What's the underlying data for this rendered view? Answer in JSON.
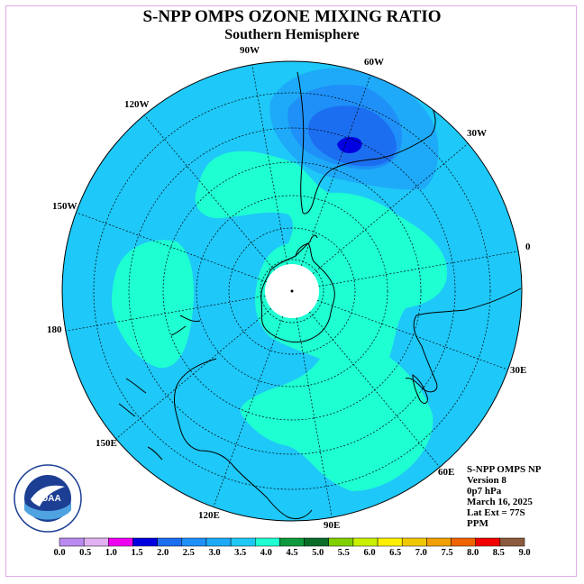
{
  "title": "S-NPP OMPS OZONE MIXING RATIO",
  "subtitle": "Southern Hemisphere",
  "longitude_labels": {
    "lon_90w": "90W",
    "lon_60w": "60W",
    "lon_30w": "30W",
    "lon_0": "0",
    "lon_30e": "30E",
    "lon_60e": "60E",
    "lon_90e": "90E",
    "lon_120e": "120E",
    "lon_150e": "150E",
    "lon_180": "180",
    "lon_150w": "150W",
    "lon_120w": "120W"
  },
  "info": {
    "product": "S-NPP OMPS NP",
    "version": "Version 8",
    "level": "0p7 hPa",
    "date": "March 16, 2025",
    "lat_ext": "Lat Ext = 77S",
    "units": "PPM"
  },
  "logo": {
    "text": "NOAA",
    "ring_text": "NATIONAL OCEANIC AND ATMOSPHERIC ADMINISTRATION · U.S. DEPARTMENT OF COMMERCE"
  },
  "colorbar": {
    "ticks": [
      "0.0",
      "0.5",
      "1.0",
      "1.5",
      "2.0",
      "2.5",
      "3.0",
      "3.5",
      "4.0",
      "4.5",
      "5.0",
      "5.5",
      "6.0",
      "6.5",
      "7.0",
      "7.5",
      "8.0",
      "8.5",
      "9.0"
    ],
    "colors": [
      "#b98af0",
      "#e0b0f0",
      "#f000f0",
      "#0000e0",
      "#1c6ef0",
      "#1e90f8",
      "#1eaaf8",
      "#1ec8f8",
      "#1effd2",
      "#0e9a3c",
      "#0a6e28",
      "#80d000",
      "#c8f000",
      "#fff000",
      "#f0c800",
      "#f0a000",
      "#f06400",
      "#f00000",
      "#8c5a3c"
    ]
  },
  "map_colors": {
    "background_field": "#1ec8f8",
    "field_3_5_4_0": "#1effd2",
    "field_2_5_3_0": "#1eaaf8",
    "field_2_0_2_5": "#1e90f8",
    "field_1_5_2_0": "#1c6ef0",
    "field_1_0_1_5": "#0000e0",
    "pole_mask": "#ffffff"
  }
}
